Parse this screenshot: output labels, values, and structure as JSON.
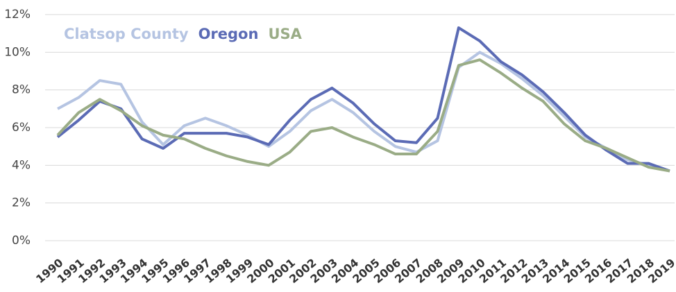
{
  "chart_data": {
    "type": "line",
    "categories": [
      "1990",
      "1991",
      "1992",
      "1993",
      "1994",
      "1995",
      "1996",
      "1997",
      "1998",
      "1999",
      "2000",
      "2001",
      "2002",
      "2003",
      "2004",
      "2005",
      "2006",
      "2007",
      "2008",
      "2009",
      "2010",
      "2011",
      "2012",
      "2013",
      "2014",
      "2015",
      "2016",
      "2017",
      "2018",
      "2019"
    ],
    "series": [
      {
        "name": "Clatsop County",
        "color": "#b5c4e2",
        "values": [
          7.0,
          7.6,
          8.5,
          8.3,
          6.3,
          5.1,
          6.1,
          6.5,
          6.1,
          5.6,
          5.0,
          5.8,
          6.9,
          7.5,
          6.8,
          5.8,
          5.0,
          4.7,
          5.3,
          9.2,
          10.0,
          9.4,
          8.6,
          7.7,
          6.6,
          5.5,
          4.9,
          4.3,
          4.0,
          3.7
        ]
      },
      {
        "name": "Oregon",
        "color": "#5b6bb5",
        "values": [
          5.5,
          6.4,
          7.4,
          7.0,
          5.4,
          4.9,
          5.7,
          5.7,
          5.7,
          5.5,
          5.1,
          6.4,
          7.5,
          8.1,
          7.3,
          6.2,
          5.3,
          5.2,
          6.5,
          11.3,
          10.6,
          9.5,
          8.8,
          7.9,
          6.8,
          5.6,
          4.8,
          4.1,
          4.1,
          3.7
        ]
      },
      {
        "name": "USA",
        "color": "#9aac86",
        "values": [
          5.6,
          6.8,
          7.5,
          6.9,
          6.1,
          5.6,
          5.4,
          4.9,
          4.5,
          4.2,
          4.0,
          4.7,
          5.8,
          6.0,
          5.5,
          5.1,
          4.6,
          4.6,
          5.8,
          9.3,
          9.6,
          8.9,
          8.1,
          7.4,
          6.2,
          5.3,
          4.9,
          4.4,
          3.9,
          3.7
        ]
      }
    ],
    "ylim": [
      0,
      12
    ],
    "yticks": [
      {
        "value": 0,
        "label": "0%"
      },
      {
        "value": 2,
        "label": "2%"
      },
      {
        "value": 4,
        "label": "4%"
      },
      {
        "value": 6,
        "label": "6%"
      },
      {
        "value": 8,
        "label": "8%"
      },
      {
        "value": 10,
        "label": "10%"
      },
      {
        "value": 12,
        "label": "12%"
      }
    ],
    "grid": true,
    "legend": "top-left"
  }
}
